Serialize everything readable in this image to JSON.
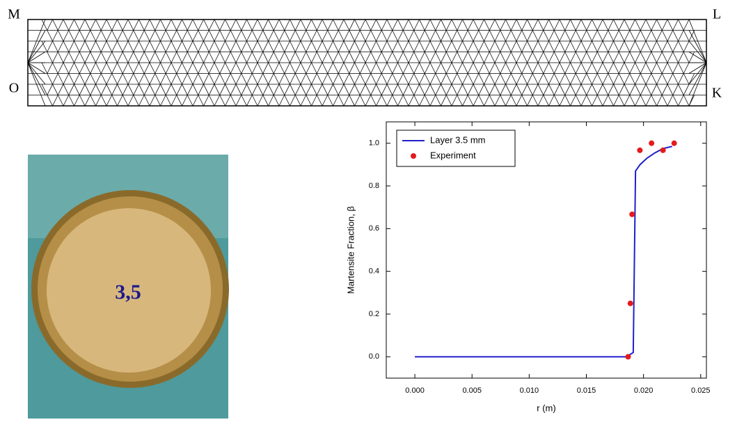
{
  "mesh": {
    "corner_labels": [
      "M",
      "L",
      "O",
      "K"
    ]
  },
  "photo": {
    "label": "3,5"
  },
  "chart_data": {
    "type": "line",
    "xlabel": "r (m)",
    "ylabel": "Martensite Fraction, β",
    "xlim": [
      -0.0025,
      0.0255
    ],
    "ylim": [
      -0.1,
      1.1
    ],
    "xticks": [
      {
        "value": 0,
        "label": "0.000"
      },
      {
        "value": 0.005,
        "label": "0.005"
      },
      {
        "value": 0.01,
        "label": "0.010"
      },
      {
        "value": 0.015,
        "label": "0.015"
      },
      {
        "value": 0.02,
        "label": "0.020"
      },
      {
        "value": 0.025,
        "label": "0.025"
      }
    ],
    "yticks": [
      {
        "value": 0,
        "label": "0.0"
      },
      {
        "value": 0.2,
        "label": "0.2"
      },
      {
        "value": 0.4,
        "label": "0.4"
      },
      {
        "value": 0.6,
        "label": "0.6"
      },
      {
        "value": 0.8,
        "label": "0.8"
      },
      {
        "value": 1,
        "label": "1.0"
      }
    ],
    "legend": "upper left",
    "series": [
      {
        "name": "Layer 3.5 mm",
        "color": "#1f1fcc",
        "kind": "line",
        "x": [
          0,
          0.0185,
          0.0191,
          0.0193,
          0.0197,
          0.0203,
          0.021,
          0.0217,
          0.0225
        ],
        "values": [
          0,
          0,
          0.02,
          0.87,
          0.9,
          0.93,
          0.955,
          0.975,
          0.985
        ]
      },
      {
        "name": "Experiment",
        "color": "#e41a1c",
        "kind": "scatter",
        "x": [
          0.01865,
          0.01885,
          0.019,
          0.01968,
          0.0207,
          0.0217,
          0.02268
        ],
        "values": [
          0,
          0.25,
          0.667,
          0.967,
          1,
          0.967,
          1
        ]
      }
    ]
  }
}
